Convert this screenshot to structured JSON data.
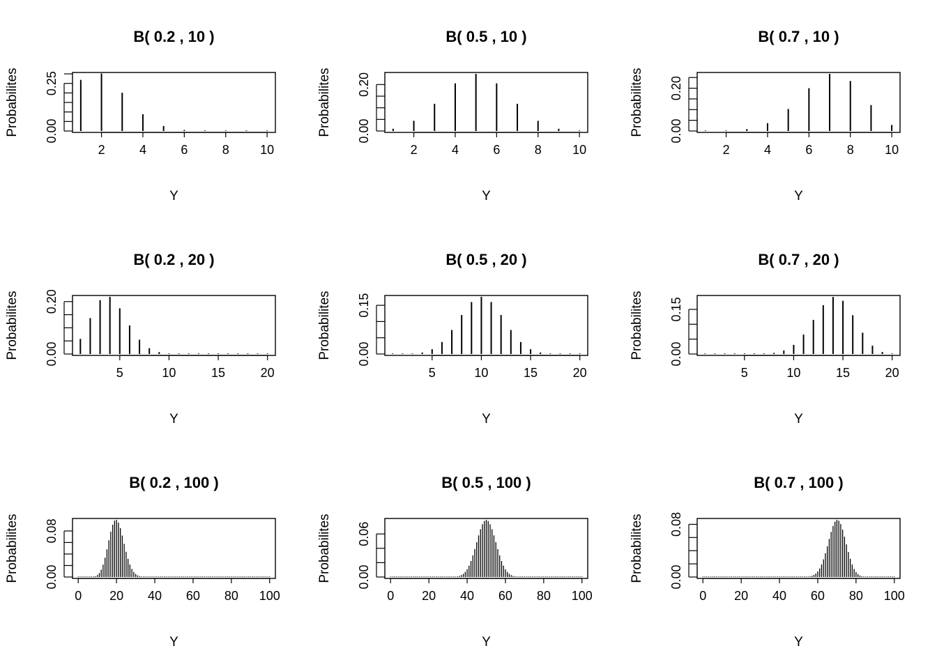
{
  "chart_data": [
    {
      "type": "bar",
      "title": "B( 0.2 , 10 )",
      "xlabel": "Y",
      "ylabel": "Probabilites",
      "p": 0.2,
      "n": 10,
      "x": [
        1,
        2,
        3,
        4,
        5,
        6,
        7,
        8,
        9,
        10
      ],
      "values": [
        0.268435,
        0.30199,
        0.201327,
        0.08808,
        0.026424,
        0.005505,
        0.000786,
        7.4e-05,
        4e-06,
        1e-07
      ],
      "xlim": [
        0.6,
        10.4
      ],
      "ylim": [
        0,
        0.3
      ],
      "xticks": [
        "2",
        "4",
        "6",
        "8",
        "10"
      ],
      "yticks": [
        "0.00",
        "0.25"
      ]
    },
    {
      "type": "bar",
      "title": "B( 0.5 , 10 )",
      "xlabel": "Y",
      "ylabel": "Probabilites",
      "p": 0.5,
      "n": 10,
      "x": [
        1,
        2,
        3,
        4,
        5,
        6,
        7,
        8,
        9,
        10
      ],
      "values": [
        0.009766,
        0.043945,
        0.117188,
        0.205078,
        0.246094,
        0.205078,
        0.117188,
        0.043945,
        0.009766,
        0.000977
      ],
      "xlim": [
        0.6,
        10.4
      ],
      "ylim": [
        0,
        0.246
      ],
      "xticks": [
        "2",
        "4",
        "6",
        "8",
        "10"
      ],
      "yticks": [
        "0.00",
        "0.20"
      ]
    },
    {
      "type": "bar",
      "title": "B( 0.7 , 10 )",
      "xlabel": "Y",
      "ylabel": "Probabilites",
      "p": 0.7,
      "n": 10,
      "x": [
        1,
        2,
        3,
        4,
        5,
        6,
        7,
        8,
        9,
        10
      ],
      "values": [
        0.000138,
        0.001447,
        0.009002,
        0.036757,
        0.102919,
        0.200121,
        0.266828,
        0.233474,
        0.121061,
        0.028248
      ],
      "xlim": [
        0.6,
        10.4
      ],
      "ylim": [
        0,
        0.267
      ],
      "xticks": [
        "2",
        "4",
        "6",
        "8",
        "10"
      ],
      "yticks": [
        "0.00",
        "0.20"
      ]
    },
    {
      "type": "bar",
      "title": "B( 0.2 , 20 )",
      "xlabel": "Y",
      "ylabel": "Probabilites",
      "p": 0.2,
      "n": 20,
      "x": [
        1,
        2,
        3,
        4,
        5,
        6,
        7,
        8,
        9,
        10,
        11,
        12,
        13,
        14,
        15,
        16,
        17,
        18,
        19,
        20
      ],
      "values": [
        0.057646,
        0.136909,
        0.205364,
        0.218199,
        0.17456,
        0.1091,
        0.05455,
        0.022161,
        0.007387,
        0.002031,
        0.000462,
        8.7e-05,
        1.3e-05,
        1.7e-06,
        2e-07,
        0.0,
        0.0,
        0.0,
        0.0,
        0.0
      ],
      "xlim": [
        0.2,
        20.8
      ],
      "ylim": [
        0,
        0.218
      ],
      "xticks": [
        "5",
        "10",
        "15",
        "20"
      ],
      "yticks": [
        "0.00",
        "0.20"
      ]
    },
    {
      "type": "bar",
      "title": "B( 0.5 , 20 )",
      "xlabel": "Y",
      "ylabel": "Probabilites",
      "p": 0.5,
      "n": 20,
      "x": [
        1,
        2,
        3,
        4,
        5,
        6,
        7,
        8,
        9,
        10,
        11,
        12,
        13,
        14,
        15,
        16,
        17,
        18,
        19,
        20
      ],
      "values": [
        1.9e-05,
        0.000181,
        0.001087,
        0.004621,
        0.014786,
        0.036964,
        0.073929,
        0.120134,
        0.160179,
        0.176197,
        0.160179,
        0.120134,
        0.073929,
        0.036964,
        0.014786,
        0.004621,
        0.001087,
        0.000181,
        1.9e-05,
        1e-06
      ],
      "xlim": [
        0.2,
        20.8
      ],
      "ylim": [
        0,
        0.176
      ],
      "xticks": [
        "5",
        "10",
        "15",
        "20"
      ],
      "yticks": [
        "0.00",
        "0.15"
      ]
    },
    {
      "type": "bar",
      "title": "B( 0.7 , 20 )",
      "xlabel": "Y",
      "ylabel": "Probabilites",
      "p": 0.7,
      "n": 20,
      "x": [
        1,
        2,
        3,
        4,
        5,
        6,
        7,
        8,
        9,
        10,
        11,
        12,
        13,
        14,
        15,
        16,
        17,
        18,
        19,
        20
      ],
      "values": [
        0.0,
        0.0,
        0.0,
        5e-06,
        3.7e-05,
        0.000218,
        0.001018,
        0.003859,
        0.012007,
        0.030817,
        0.06537,
        0.114397,
        0.164262,
        0.191639,
        0.178863,
        0.130421,
        0.071604,
        0.027846,
        0.006839,
        0.000798
      ],
      "xlim": [
        0.2,
        20.8
      ],
      "ylim": [
        0,
        0.192
      ],
      "xticks": [
        "5",
        "10",
        "15",
        "20"
      ],
      "yticks": [
        "0.00",
        "0.15"
      ]
    },
    {
      "type": "bar",
      "title": "B( 0.2 , 100 )",
      "xlabel": "Y",
      "ylabel": "Probabilites",
      "p": 0.2,
      "n": 100,
      "x": [],
      "values": [],
      "xlim": [
        -3,
        103
      ],
      "ylim": [
        0,
        0.0993
      ],
      "xticks": [
        "0",
        "20",
        "40",
        "60",
        "80",
        "100"
      ],
      "yticks": [
        "0.00",
        "0.08"
      ]
    },
    {
      "type": "bar",
      "title": "B( 0.5 , 100 )",
      "xlabel": "Y",
      "ylabel": "Probabilites",
      "p": 0.5,
      "n": 100,
      "x": [],
      "values": [],
      "xlim": [
        -3,
        103
      ],
      "ylim": [
        0,
        0.0796
      ],
      "xticks": [
        "0",
        "20",
        "40",
        "60",
        "80",
        "100"
      ],
      "yticks": [
        "0.00",
        "0.06"
      ]
    },
    {
      "type": "bar",
      "title": "B( 0.7 , 100 )",
      "xlabel": "Y",
      "ylabel": "Probabilites",
      "p": 0.7,
      "n": 100,
      "x": [],
      "values": [],
      "xlim": [
        -3,
        103
      ],
      "ylim": [
        0,
        0.0868
      ],
      "xticks": [
        "0",
        "20",
        "40",
        "60",
        "80",
        "100"
      ],
      "yticks": [
        "0.00",
        "0.08"
      ]
    }
  ]
}
